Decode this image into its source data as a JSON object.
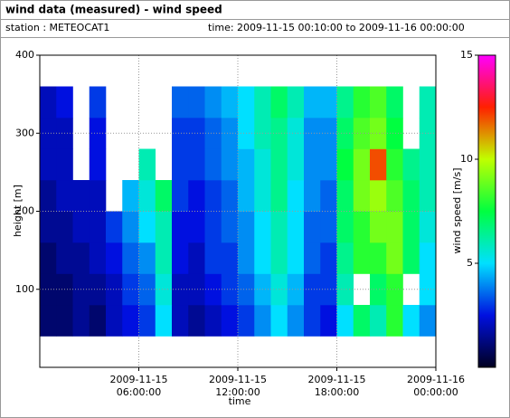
{
  "header": {
    "title": "wind data (measured) - wind speed",
    "station": "station : METEOCAT1",
    "time": "time: 2009-11-15 00:10:00 to 2009-11-16 00:00:00"
  },
  "chart_data": {
    "type": "heatmap",
    "xlabel": "time",
    "ylabel": "height [m]",
    "colorbar_label": "wind speed [m/s]",
    "xlim": [
      0,
      24
    ],
    "xticks": [
      {
        "value": 6,
        "label": "2009-11-15 06:00:00"
      },
      {
        "value": 12,
        "label": "2009-11-15 12:00:00"
      },
      {
        "value": 18,
        "label": "2009-11-15 18:00:00"
      },
      {
        "value": 24,
        "label": "2009-11-16 00:00:00"
      }
    ],
    "ylim": [
      0,
      400
    ],
    "yticks": [
      100,
      200,
      300,
      400
    ],
    "grid": true,
    "clim": [
      0,
      15
    ],
    "cticks": [
      5,
      10,
      15
    ],
    "colormap": [
      "#000020",
      "#0010e0",
      "#00e0ff",
      "#00ff40",
      "#c0ff00",
      "#ff2000",
      "#ff00ff"
    ],
    "xbins": [
      0,
      1,
      2,
      3,
      4,
      5,
      6,
      7,
      8,
      9,
      10,
      11,
      12,
      13,
      14,
      15,
      16,
      17,
      18,
      19,
      20,
      21,
      22,
      23,
      24
    ],
    "ybins": [
      40,
      80,
      120,
      160,
      200,
      240,
      280,
      320,
      360
    ],
    "values": [
      [
        1,
        1,
        1.5,
        1,
        2,
        2.5,
        3,
        5,
        2,
        1.5,
        2,
        2.5,
        3,
        4,
        5,
        4,
        3,
        2.5,
        5,
        7,
        6,
        8,
        5,
        4
      ],
      [
        1,
        1,
        1.5,
        1.5,
        2,
        3,
        3.5,
        5.5,
        2,
        2,
        2.5,
        3,
        3.5,
        4.5,
        5.5,
        4.5,
        3,
        3,
        6,
        null,
        7,
        8,
        null,
        5
      ],
      [
        1,
        1.5,
        1.5,
        2,
        2.5,
        3.5,
        4,
        6,
        2.5,
        2,
        3,
        3,
        4,
        5,
        6,
        5,
        3.5,
        3,
        6.5,
        8,
        8,
        9,
        7,
        5
      ],
      [
        1.5,
        1.5,
        2,
        2,
        3,
        4,
        5,
        6,
        2.5,
        2.5,
        3,
        3.5,
        4,
        5,
        6,
        5,
        3.5,
        3.5,
        7,
        8,
        9,
        9,
        7,
        5.5
      ],
      [
        1.5,
        2,
        2,
        2,
        null,
        4.5,
        5.5,
        7,
        3,
        2.5,
        3,
        3.5,
        4.5,
        5.5,
        6.5,
        5,
        4,
        3.5,
        7,
        9,
        9.5,
        8.5,
        7,
        6
      ],
      [
        2,
        2,
        null,
        2.5,
        null,
        null,
        6,
        null,
        3,
        3,
        3.5,
        4,
        4.5,
        5.5,
        6.5,
        5.5,
        4,
        4,
        7.5,
        9,
        12,
        8,
        6.5,
        6
      ],
      [
        2,
        2,
        null,
        2.5,
        null,
        null,
        null,
        null,
        3,
        3,
        3.5,
        4,
        5,
        6,
        6.5,
        5.5,
        4,
        4,
        7,
        8.5,
        9,
        7.5,
        null,
        6
      ],
      [
        2,
        2.5,
        null,
        3,
        null,
        null,
        null,
        null,
        3.5,
        3.5,
        4,
        4.5,
        5,
        6,
        7,
        6,
        4.5,
        4.5,
        6.5,
        8,
        8.5,
        7,
        null,
        6
      ]
    ]
  }
}
